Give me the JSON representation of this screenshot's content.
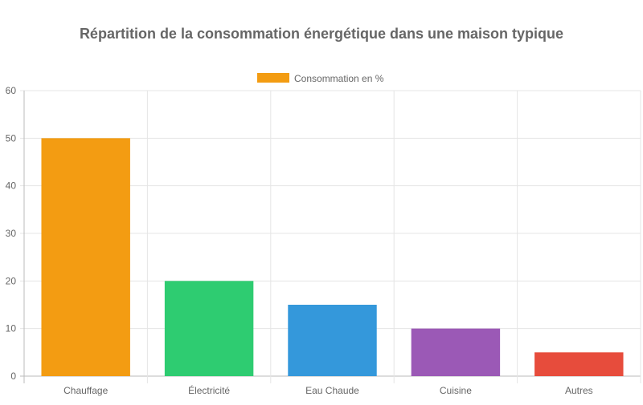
{
  "chart_data": {
    "type": "bar",
    "title": "Répartition de la consommation énergétique dans une maison typique",
    "categories": [
      "Chauffage",
      "Électricité",
      "Eau Chaude",
      "Cuisine",
      "Autres"
    ],
    "series": [
      {
        "name": "Consommation en %",
        "values": [
          50,
          20,
          15,
          10,
          5
        ],
        "colors": [
          "#f39c12",
          "#2ecc71",
          "#3498db",
          "#9b59b6",
          "#e74c3c"
        ]
      }
    ],
    "legend_color": "#f39c12",
    "xlabel": "",
    "ylabel": "",
    "ylim": [
      0,
      60
    ],
    "yticks": [
      0,
      10,
      20,
      30,
      40,
      50,
      60
    ],
    "grid": true,
    "legend_position": "top"
  }
}
